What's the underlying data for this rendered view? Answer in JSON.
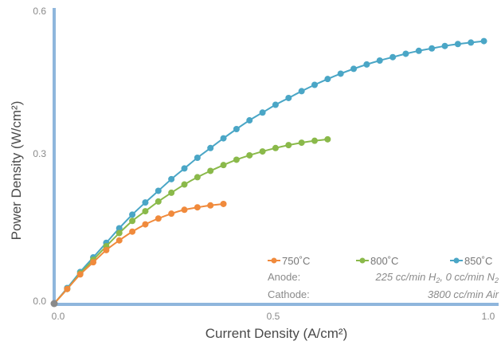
{
  "chart_data": {
    "type": "line",
    "xlabel": "Current Density (A/cm²)",
    "ylabel": "Power Density (W/cm²)",
    "xlim": [
      0.0,
      1.0
    ],
    "ylim": [
      0.0,
      0.6
    ],
    "x_ticks": [
      "0.0",
      "0.5",
      "1.0"
    ],
    "y_ticks": [
      "0.0",
      "0.3",
      "0.6"
    ],
    "legend_position": "bottom-right",
    "series": [
      {
        "name": "750˚C",
        "color": "#f08a3c",
        "x": [
          0.0,
          0.03,
          0.06,
          0.09,
          0.12,
          0.15,
          0.18,
          0.21,
          0.24,
          0.27,
          0.3,
          0.33,
          0.36,
          0.39
        ],
        "y": [
          0.0,
          0.03,
          0.06,
          0.085,
          0.11,
          0.13,
          0.148,
          0.163,
          0.175,
          0.185,
          0.193,
          0.198,
          0.202,
          0.205
        ]
      },
      {
        "name": "800˚C",
        "color": "#8ab94a",
        "x": [
          0.0,
          0.03,
          0.06,
          0.09,
          0.12,
          0.15,
          0.18,
          0.21,
          0.24,
          0.27,
          0.3,
          0.33,
          0.36,
          0.39,
          0.42,
          0.45,
          0.48,
          0.51,
          0.54,
          0.57,
          0.6,
          0.63
        ],
        "y": [
          0.0,
          0.03,
          0.062,
          0.09,
          0.118,
          0.145,
          0.17,
          0.19,
          0.21,
          0.228,
          0.245,
          0.26,
          0.273,
          0.285,
          0.296,
          0.305,
          0.313,
          0.32,
          0.326,
          0.331,
          0.335,
          0.338
        ]
      },
      {
        "name": "850˚C",
        "color": "#4aa6c6",
        "x": [
          0.0,
          0.03,
          0.06,
          0.09,
          0.12,
          0.15,
          0.18,
          0.21,
          0.24,
          0.27,
          0.3,
          0.33,
          0.36,
          0.39,
          0.42,
          0.45,
          0.48,
          0.51,
          0.54,
          0.57,
          0.6,
          0.63,
          0.66,
          0.69,
          0.72,
          0.75,
          0.78,
          0.81,
          0.84,
          0.87,
          0.9,
          0.93,
          0.96,
          0.99
        ],
        "y": [
          0.0,
          0.032,
          0.065,
          0.095,
          0.125,
          0.155,
          0.183,
          0.208,
          0.232,
          0.256,
          0.278,
          0.3,
          0.32,
          0.34,
          0.359,
          0.377,
          0.393,
          0.409,
          0.423,
          0.437,
          0.45,
          0.462,
          0.473,
          0.483,
          0.492,
          0.5,
          0.507,
          0.514,
          0.52,
          0.525,
          0.53,
          0.534,
          0.537,
          0.54
        ]
      }
    ],
    "annotations": {
      "anode_label": "Anode:",
      "anode_value_part1": "225 cc/min H",
      "anode_sub1": "2",
      "anode_value_part2": ", 0 cc/min N",
      "anode_sub2": "2",
      "cathode_label": "Cathode:",
      "cathode_value": "3800 cc/min Air"
    },
    "axis_color": "#8fb6dc"
  }
}
